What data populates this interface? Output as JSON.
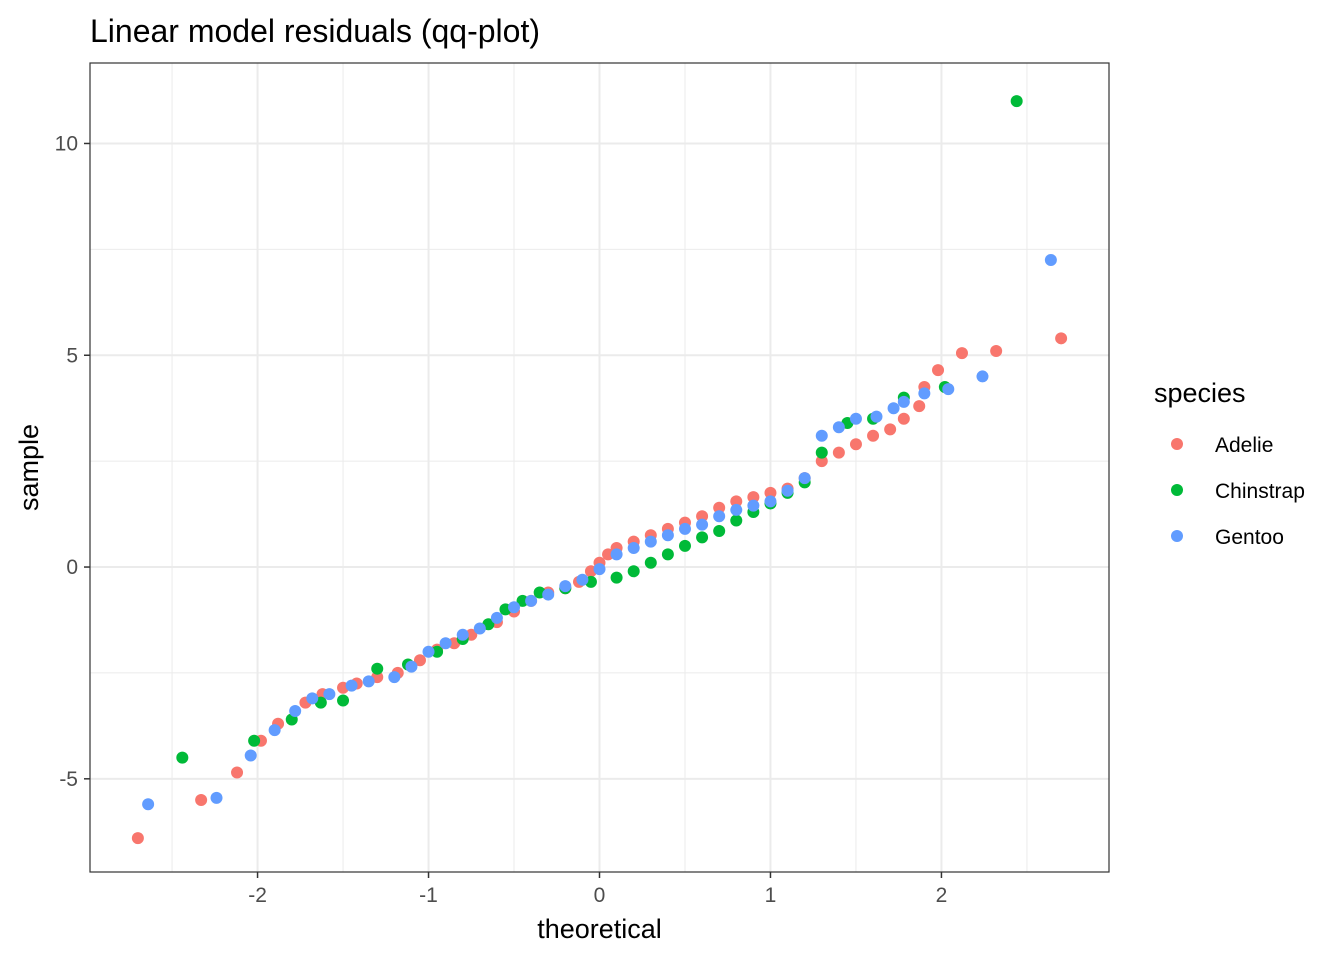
{
  "chart_data": {
    "type": "scatter",
    "title": "Linear model residuals (qq-plot)",
    "xlabel": "theoretical",
    "ylabel": "sample",
    "xlim": [
      -2.98,
      2.98
    ],
    "ylim": [
      -7.2,
      11.9
    ],
    "x_ticks": [
      -2,
      -1,
      0,
      1,
      2
    ],
    "x_tick_labels": [
      "-2",
      "-1",
      "0",
      "1",
      "2"
    ],
    "y_ticks": [
      -5,
      0,
      5,
      10
    ],
    "y_tick_labels": [
      "-5",
      "0",
      "5",
      "10"
    ],
    "grid": true,
    "legend": {
      "title": "species",
      "position": "right",
      "entries": [
        "Adelie",
        "Chinstrap",
        "Gentoo"
      ]
    },
    "series": [
      {
        "name": "Adelie",
        "color": "#F8766D",
        "points": [
          [
            -2.7,
            -6.4
          ],
          [
            -2.33,
            -5.5
          ],
          [
            -2.12,
            -4.85
          ],
          [
            -1.98,
            -4.1
          ],
          [
            -1.88,
            -3.7
          ],
          [
            -1.72,
            -3.2
          ],
          [
            -1.62,
            -3.0
          ],
          [
            -1.5,
            -2.85
          ],
          [
            -1.42,
            -2.75
          ],
          [
            -1.3,
            -2.6
          ],
          [
            -1.18,
            -2.5
          ],
          [
            -1.05,
            -2.2
          ],
          [
            -0.95,
            -1.95
          ],
          [
            -0.85,
            -1.8
          ],
          [
            -0.75,
            -1.6
          ],
          [
            -0.6,
            -1.3
          ],
          [
            -0.5,
            -1.05
          ],
          [
            -0.4,
            -0.8
          ],
          [
            -0.3,
            -0.6
          ],
          [
            -0.2,
            -0.5
          ],
          [
            -0.12,
            -0.35
          ],
          [
            -0.05,
            -0.1
          ],
          [
            0.0,
            0.1
          ],
          [
            0.05,
            0.3
          ],
          [
            0.1,
            0.45
          ],
          [
            0.2,
            0.6
          ],
          [
            0.3,
            0.75
          ],
          [
            0.4,
            0.9
          ],
          [
            0.5,
            1.05
          ],
          [
            0.6,
            1.2
          ],
          [
            0.7,
            1.4
          ],
          [
            0.8,
            1.55
          ],
          [
            0.9,
            1.65
          ],
          [
            1.0,
            1.75
          ],
          [
            1.1,
            1.85
          ],
          [
            1.2,
            2.1
          ],
          [
            1.3,
            2.5
          ],
          [
            1.4,
            2.7
          ],
          [
            1.5,
            2.9
          ],
          [
            1.6,
            3.1
          ],
          [
            1.7,
            3.25
          ],
          [
            1.78,
            3.5
          ],
          [
            1.87,
            3.8
          ],
          [
            1.9,
            4.25
          ],
          [
            1.98,
            4.65
          ],
          [
            2.12,
            5.05
          ],
          [
            2.32,
            5.1
          ],
          [
            2.7,
            5.4
          ]
        ]
      },
      {
        "name": "Chinstrap",
        "color": "#00BA38",
        "points": [
          [
            -2.44,
            -4.5
          ],
          [
            -2.02,
            -4.1
          ],
          [
            -1.8,
            -3.6
          ],
          [
            -1.63,
            -3.2
          ],
          [
            -1.5,
            -3.15
          ],
          [
            -1.3,
            -2.4
          ],
          [
            -1.12,
            -2.3
          ],
          [
            -0.95,
            -2.0
          ],
          [
            -0.8,
            -1.7
          ],
          [
            -0.65,
            -1.35
          ],
          [
            -0.55,
            -1.0
          ],
          [
            -0.45,
            -0.8
          ],
          [
            -0.35,
            -0.6
          ],
          [
            -0.2,
            -0.5
          ],
          [
            -0.05,
            -0.35
          ],
          [
            0.1,
            -0.25
          ],
          [
            0.2,
            -0.1
          ],
          [
            0.3,
            0.1
          ],
          [
            0.4,
            0.3
          ],
          [
            0.5,
            0.5
          ],
          [
            0.6,
            0.7
          ],
          [
            0.7,
            0.85
          ],
          [
            0.8,
            1.1
          ],
          [
            0.9,
            1.3
          ],
          [
            1.0,
            1.5
          ],
          [
            1.1,
            1.75
          ],
          [
            1.2,
            2.0
          ],
          [
            1.3,
            2.7
          ],
          [
            1.45,
            3.4
          ],
          [
            1.6,
            3.5
          ],
          [
            1.78,
            4.0
          ],
          [
            2.02,
            4.25
          ],
          [
            2.44,
            11.0
          ]
        ]
      },
      {
        "name": "Gentoo",
        "color": "#619CFF",
        "points": [
          [
            -2.64,
            -5.6
          ],
          [
            -2.24,
            -5.45
          ],
          [
            -2.04,
            -4.45
          ],
          [
            -1.9,
            -3.85
          ],
          [
            -1.78,
            -3.4
          ],
          [
            -1.68,
            -3.1
          ],
          [
            -1.58,
            -3.0
          ],
          [
            -1.45,
            -2.8
          ],
          [
            -1.35,
            -2.7
          ],
          [
            -1.2,
            -2.6
          ],
          [
            -1.1,
            -2.35
          ],
          [
            -1.0,
            -2.0
          ],
          [
            -0.9,
            -1.8
          ],
          [
            -0.8,
            -1.6
          ],
          [
            -0.7,
            -1.45
          ],
          [
            -0.6,
            -1.2
          ],
          [
            -0.5,
            -0.95
          ],
          [
            -0.4,
            -0.8
          ],
          [
            -0.3,
            -0.65
          ],
          [
            -0.2,
            -0.45
          ],
          [
            -0.1,
            -0.3
          ],
          [
            0.0,
            -0.05
          ],
          [
            0.1,
            0.3
          ],
          [
            0.2,
            0.45
          ],
          [
            0.3,
            0.6
          ],
          [
            0.4,
            0.75
          ],
          [
            0.5,
            0.9
          ],
          [
            0.6,
            1.0
          ],
          [
            0.7,
            1.2
          ],
          [
            0.8,
            1.35
          ],
          [
            0.9,
            1.45
          ],
          [
            1.0,
            1.55
          ],
          [
            1.1,
            1.8
          ],
          [
            1.2,
            2.1
          ],
          [
            1.3,
            3.1
          ],
          [
            1.4,
            3.3
          ],
          [
            1.5,
            3.5
          ],
          [
            1.62,
            3.55
          ],
          [
            1.72,
            3.75
          ],
          [
            1.78,
            3.9
          ],
          [
            1.9,
            4.1
          ],
          [
            2.04,
            4.2
          ],
          [
            2.24,
            4.5
          ],
          [
            2.64,
            7.25
          ]
        ]
      }
    ]
  }
}
